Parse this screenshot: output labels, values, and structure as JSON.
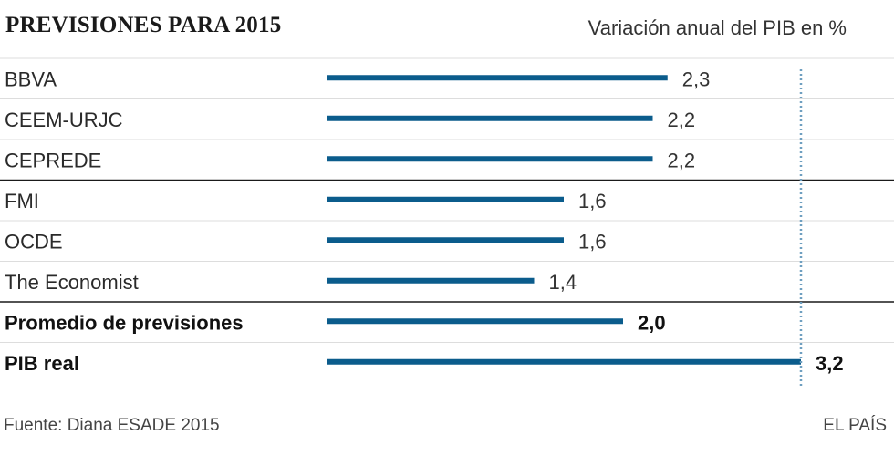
{
  "header": {
    "title": "PREVISIONES PARA 2015",
    "subtitle": "Variación anual del PIB en %"
  },
  "footer": {
    "source": "Fuente: Diana ESADE 2015",
    "brand": "EL PAÍS"
  },
  "colors": {
    "bar": "#0b5c8c",
    "separator": "#1a1a1a",
    "reference_line": "#6f9fc0"
  },
  "chart_data": {
    "type": "bar",
    "orientation": "horizontal",
    "title": "PREVISIONES PARA 2015",
    "subtitle": "Variación anual del PIB en %",
    "categories": [
      "BBVA",
      "CEEM-URJC",
      "CEPREDE",
      "FMI",
      "OCDE",
      "The Economist",
      "Promedio de previsiones",
      "PIB real"
    ],
    "values": [
      2.3,
      2.2,
      2.2,
      1.6,
      1.6,
      1.4,
      2.0,
      3.2
    ],
    "value_labels": [
      "2,3",
      "2,2",
      "2,2",
      "1,6",
      "1,6",
      "1,4",
      "2,0",
      "3,2"
    ],
    "bold_rows": [
      "Promedio de previsiones",
      "PIB real"
    ],
    "group_separators_after": [
      "CEPREDE",
      "The Economist"
    ],
    "reference_line": {
      "value": 3.2,
      "style": "dotted"
    },
    "xlim": [
      0,
      3.2
    ]
  }
}
